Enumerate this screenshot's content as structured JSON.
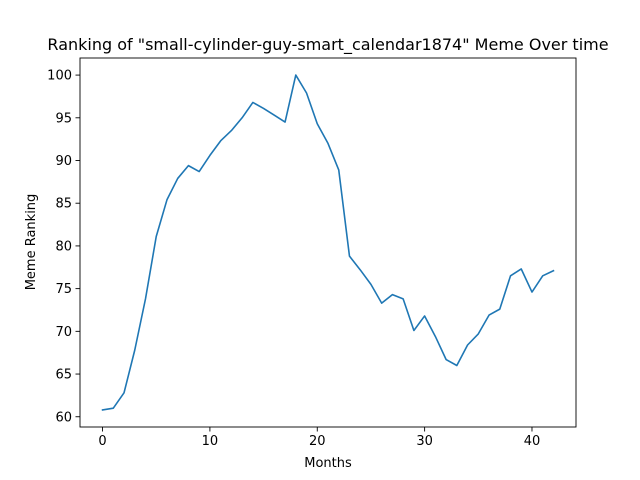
{
  "chart_data": {
    "type": "line",
    "title": "Ranking of \"small-cylinder-guy-smart_calendar1874\" Meme Over time",
    "xlabel": "Months",
    "ylabel": "Meme Ranking",
    "xlim": [
      -2.1,
      44.1
    ],
    "ylim": [
      58.8,
      102.0
    ],
    "xticks": [
      0,
      10,
      20,
      30,
      40
    ],
    "yticks": [
      60,
      65,
      70,
      75,
      80,
      85,
      90,
      95,
      100
    ],
    "grid": false,
    "series": [
      {
        "color": "#1f77b4",
        "x": [
          0,
          1,
          2,
          3,
          4,
          5,
          6,
          7,
          8,
          9,
          10,
          11,
          12,
          13,
          14,
          15,
          16,
          17,
          18,
          19,
          20,
          21,
          22,
          23,
          24,
          25,
          26,
          27,
          28,
          29,
          30,
          31,
          32,
          33,
          34,
          35,
          36,
          37,
          38,
          39,
          40,
          41,
          42
        ],
        "values": [
          60.8,
          61.0,
          62.8,
          67.8,
          73.8,
          81.1,
          85.4,
          87.9,
          89.4,
          88.7,
          90.6,
          92.3,
          93.5,
          95.0,
          96.8,
          96.1,
          95.3,
          94.5,
          100.0,
          97.9,
          94.3,
          92.0,
          88.9,
          78.8,
          77.2,
          75.5,
          73.3,
          74.3,
          73.8,
          70.1,
          71.8,
          69.4,
          66.7,
          66.0,
          68.4,
          69.7,
          71.9,
          72.6,
          76.5,
          77.3,
          74.6,
          76.5,
          77.1
        ]
      }
    ]
  }
}
